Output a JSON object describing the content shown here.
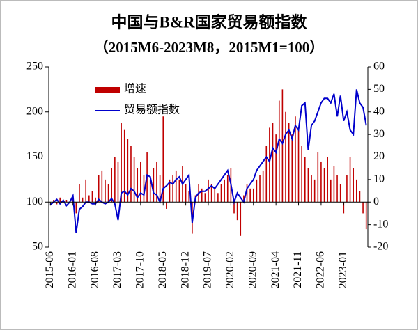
{
  "chart_data": {
    "type": "bar-line",
    "title": "中国与B&R国家贸易额指数",
    "subtitle": "（2015M6-2023M8，2015M1=100）",
    "categories": [
      "2015-06",
      null,
      null,
      null,
      null,
      null,
      null,
      "2016-01",
      null,
      null,
      null,
      null,
      null,
      null,
      "2016-08",
      null,
      null,
      null,
      null,
      null,
      null,
      "2017-03",
      null,
      null,
      null,
      null,
      null,
      null,
      "2017-10",
      null,
      null,
      null,
      null,
      null,
      null,
      "2018-05",
      null,
      null,
      null,
      null,
      null,
      null,
      "2018-12",
      null,
      null,
      null,
      null,
      null,
      null,
      "2019-07",
      null,
      null,
      null,
      null,
      null,
      null,
      "2020-02",
      null,
      null,
      null,
      null,
      null,
      null,
      "2020-09",
      null,
      null,
      null,
      null,
      null,
      null,
      "2021-04",
      null,
      null,
      null,
      null,
      null,
      null,
      "2021-11",
      null,
      null,
      null,
      null,
      null,
      null,
      "2022-06",
      null,
      null,
      null,
      null,
      null,
      null,
      "2023-01",
      null,
      null,
      null,
      null,
      null,
      null,
      null
    ],
    "series": [
      {
        "name": "增速",
        "type": "bar",
        "axis": "y2",
        "color": "#c00000",
        "values": [
          0,
          1,
          -1,
          2,
          0,
          1,
          0,
          3,
          -5,
          8,
          2,
          10,
          3,
          5,
          2,
          12,
          14,
          10,
          8,
          15,
          20,
          18,
          35,
          32,
          28,
          25,
          20,
          15,
          18,
          12,
          22,
          10,
          15,
          18,
          12,
          38,
          -3,
          10,
          12,
          14,
          10,
          16,
          8,
          5,
          -14,
          3,
          8,
          6,
          4,
          10,
          8,
          6,
          4,
          8,
          10,
          12,
          15,
          -5,
          -8,
          -15,
          3,
          8,
          6,
          6,
          10,
          12,
          14,
          25,
          33,
          35,
          30,
          45,
          50,
          40,
          35,
          30,
          38,
          33,
          25,
          20,
          15,
          12,
          10,
          22,
          18,
          15,
          20,
          10,
          16,
          12,
          8,
          -5,
          12,
          20,
          15,
          10,
          5,
          -5,
          -12
        ]
      },
      {
        "name": "贸易额指数",
        "type": "line",
        "axis": "y",
        "color": "#0000cc",
        "values": [
          97,
          100,
          103,
          98,
          102,
          96,
          100,
          107,
          66,
          92,
          95,
          100,
          100,
          98,
          98,
          103,
          100,
          98,
          100,
          104,
          98,
          80,
          110,
          112,
          108,
          115,
          112,
          105,
          110,
          108,
          130,
          128,
          110,
          108,
          100,
          115,
          118,
          122,
          120,
          125,
          128,
          120,
          125,
          130,
          77,
          105,
          110,
          112,
          112,
          115,
          118,
          115,
          120,
          125,
          130,
          135,
          120,
          100,
          110,
          105,
          100,
          115,
          120,
          125,
          135,
          140,
          145,
          150,
          145,
          160,
          155,
          170,
          165,
          175,
          180,
          170,
          185,
          180,
          207,
          210,
          158,
          185,
          190,
          200,
          210,
          215,
          215,
          210,
          220,
          195,
          218,
          190,
          200,
          180,
          175,
          225,
          210,
          205,
          185
        ]
      }
    ],
    "ylim": [
      50,
      250
    ],
    "yticks": [
      50,
      100,
      150,
      200,
      250
    ],
    "y2lim": [
      -20,
      60
    ],
    "y2ticks": [
      -20,
      -10,
      0,
      10,
      20,
      30,
      40,
      50,
      60
    ],
    "legend": "upper left"
  }
}
